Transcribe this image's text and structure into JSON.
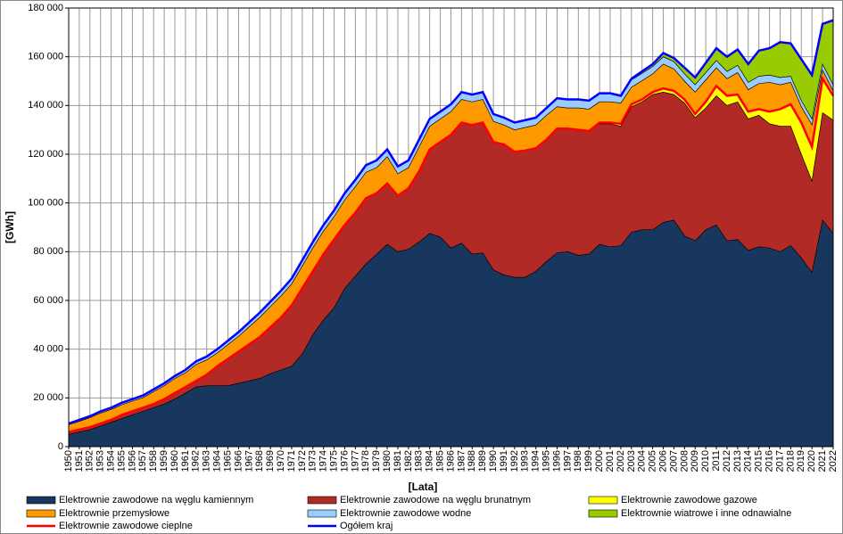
{
  "chart_data": {
    "type": "area",
    "ylabel": "[GWh]",
    "xlabel": "[Lata]",
    "categories": [
      "1950",
      "1951",
      "1952",
      "1953",
      "1954",
      "1955",
      "1956",
      "1957",
      "1958",
      "1959",
      "1960",
      "1961",
      "1962",
      "1963",
      "1964",
      "1965",
      "1966",
      "1967",
      "1968",
      "1969",
      "1970",
      "1971",
      "1972",
      "1973",
      "1974",
      "1975",
      "1976",
      "1977",
      "1978",
      "1979",
      "1980",
      "1981",
      "1982",
      "1983",
      "1984",
      "1985",
      "1986",
      "1987",
      "1988",
      "1989",
      "1990",
      "1991",
      "1992",
      "1993",
      "1994",
      "1995",
      "1996",
      "1997",
      "1998",
      "1999",
      "2000",
      "2001",
      "2002",
      "2003",
      "2004",
      "2005",
      "2006",
      "2007",
      "2008",
      "2009",
      "2010",
      "2011",
      "2012",
      "2013",
      "2014",
      "2015",
      "2016",
      "2017",
      "2018",
      "2019",
      "2020",
      "2021",
      "2022"
    ],
    "ylim": [
      0,
      180000
    ],
    "yticks": [
      0,
      {
        "value": 20000,
        "label": "20 000"
      },
      {
        "value": 40000,
        "label": "40 000"
      },
      {
        "value": 60000,
        "label": "60 000"
      },
      {
        "value": 80000,
        "label": "80 000"
      },
      {
        "value": 100000,
        "label": "100 000"
      },
      {
        "value": 120000,
        "label": "120 000"
      },
      {
        "value": 140000,
        "label": "140 000"
      },
      {
        "value": 160000,
        "label": "160 000"
      },
      {
        "value": 180000,
        "label": "180 000"
      }
    ],
    "grid": true,
    "stacked": true,
    "legend": "bottom",
    "series": [
      {
        "name": "Elektrownie  zawodowe na węglu kamiennym",
        "type": "area",
        "color": "#17375e",
        "values": [
          5000,
          6000,
          7000,
          8500,
          10000,
          11500,
          13000,
          14500,
          16000,
          17500,
          19500,
          22000,
          24500,
          25000,
          25000,
          25000,
          26000,
          27000,
          28000,
          30000,
          31500,
          33000,
          38000,
          46000,
          52000,
          57000,
          65000,
          70000,
          75000,
          79000,
          83000,
          80000,
          81000,
          84000,
          87500,
          86000,
          81500,
          83500,
          79000,
          79500,
          72500,
          70500,
          69500,
          69500,
          72000,
          76000,
          79500,
          80000,
          78500,
          79000,
          83000,
          82000,
          82500,
          88000,
          89000,
          89000,
          92000,
          93000,
          86500,
          84500,
          89000,
          91000,
          84500,
          85000,
          80500,
          82000,
          81500,
          80000,
          82500,
          77500,
          71500,
          93000,
          87500
        ]
      },
      {
        "name": "Elektrownie  zawodowe na węglu brunatnym",
        "type": "area",
        "color": "#b22a25",
        "values": [
          1000,
          1000,
          1000,
          1000,
          1000,
          1500,
          1500,
          1500,
          1500,
          2000,
          2500,
          2500,
          2500,
          4500,
          8000,
          11000,
          13000,
          15000,
          17000,
          19000,
          21500,
          25000,
          27000,
          26000,
          27000,
          28000,
          26000,
          26000,
          27000,
          25000,
          25000,
          23000,
          25000,
          29000,
          34500,
          39000,
          46500,
          49500,
          53000,
          53500,
          52500,
          53500,
          51500,
          52000,
          50500,
          50000,
          51000,
          50500,
          51500,
          50500,
          49500,
          50500,
          49000,
          51500,
          52500,
          55500,
          53500,
          51500,
          54500,
          50500,
          50000,
          53000,
          55500,
          56500,
          54000,
          54000,
          51000,
          51500,
          49000,
          42500,
          37500,
          44000,
          46500
        ]
      },
      {
        "name": "Elektrownie  zawodowe gazowe",
        "type": "area",
        "color": "#ffff00",
        "values": [
          0,
          0,
          0,
          0,
          0,
          0,
          0,
          0,
          0,
          0,
          0,
          0,
          0,
          0,
          0,
          0,
          0,
          0,
          0,
          0,
          0,
          0,
          0,
          0,
          0,
          0,
          0,
          0,
          0,
          0,
          0,
          0,
          0,
          0,
          0,
          0,
          0,
          0,
          0,
          0,
          0,
          0,
          0,
          0,
          0,
          0,
          0,
          0,
          0,
          0,
          500,
          500,
          1000,
          1000,
          1000,
          1000,
          1500,
          1500,
          1500,
          1500,
          2500,
          4000,
          4000,
          3000,
          3000,
          2500,
          5000,
          7000,
          9000,
          13000,
          14000,
          14000,
          10000
        ]
      },
      {
        "name": "Elektrownie  przemysłowe",
        "type": "area",
        "color": "#ff9900",
        "values": [
          3000,
          3400,
          3900,
          4300,
          4300,
          4200,
          4200,
          4100,
          5100,
          5500,
          6000,
          5800,
          6700,
          6100,
          5500,
          5900,
          6300,
          7200,
          8100,
          8500,
          8900,
          8800,
          9200,
          9600,
          9500,
          9400,
          10300,
          10700,
          10600,
          10500,
          11000,
          9000,
          8500,
          10000,
          9500,
          9500,
          9500,
          9500,
          9500,
          9500,
          8500,
          8000,
          9000,
          9500,
          9500,
          10000,
          9000,
          8500,
          9000,
          9000,
          8500,
          8500,
          8500,
          7000,
          7700,
          7500,
          10000,
          9000,
          7500,
          9000,
          9000,
          7500,
          7000,
          9000,
          9000,
          10500,
          12000,
          10000,
          9000,
          6500,
          9000,
          3500,
          2000
        ]
      },
      {
        "name": "Elektrownie  zawodowe wodne",
        "type": "area",
        "color": "#99ccff",
        "values": [
          500,
          600,
          600,
          700,
          700,
          800,
          800,
          900,
          900,
          1000,
          1000,
          1200,
          1300,
          1400,
          1500,
          1600,
          1700,
          1800,
          1900,
          2000,
          2100,
          2200,
          2300,
          2400,
          2500,
          2600,
          2700,
          2800,
          2900,
          3000,
          3000,
          3000,
          3000,
          3000,
          3000,
          3000,
          3000,
          3000,
          3000,
          3000,
          3000,
          3000,
          3000,
          3000,
          3000,
          3000,
          3500,
          3500,
          3500,
          3500,
          3500,
          3500,
          3000,
          3000,
          3000,
          3000,
          3000,
          3000,
          3000,
          3000,
          3000,
          3000,
          3000,
          3000,
          3000,
          3000,
          3000,
          3000,
          2500,
          2500,
          2500,
          2500,
          2500
        ]
      },
      {
        "name": "Elektrownie  wiatrowe i inne odnawialne",
        "type": "area",
        "color": "#99cc00",
        "values": [
          0,
          0,
          0,
          0,
          0,
          0,
          0,
          0,
          0,
          0,
          0,
          0,
          0,
          0,
          0,
          0,
          0,
          0,
          0,
          0,
          0,
          0,
          0,
          0,
          0,
          0,
          0,
          0,
          0,
          0,
          0,
          0,
          0,
          0,
          0,
          0,
          0,
          0,
          0,
          0,
          0,
          0,
          0,
          0,
          0,
          0,
          0,
          0,
          0,
          0,
          0,
          0,
          0,
          500,
          800,
          1000,
          1500,
          1500,
          2500,
          3000,
          4000,
          5000,
          6000,
          6500,
          7500,
          10500,
          11000,
          14500,
          13500,
          17000,
          18000,
          16500,
          26500
        ]
      },
      {
        "name": "Elektrownie  zawodowe cieplne",
        "type": "line",
        "color": "#ff0000",
        "values": [
          6000,
          7000,
          8000,
          9500,
          11000,
          13000,
          14500,
          16000,
          17500,
          19500,
          22000,
          24500,
          27000,
          29500,
          33000,
          36000,
          39000,
          42000,
          45000,
          49000,
          53000,
          58000,
          65000,
          72000,
          79000,
          85000,
          91000,
          96000,
          102000,
          104000,
          108000,
          103000,
          106000,
          113000,
          122000,
          125000,
          128000,
          133000,
          132000,
          133000,
          125000,
          124000,
          121000,
          121500,
          122500,
          126000,
          130500,
          130500,
          130000,
          129500,
          133000,
          133000,
          132500,
          140500,
          142500,
          145500,
          147000,
          146000,
          142500,
          136500,
          141500,
          148000,
          144000,
          144500,
          137500,
          138500,
          137500,
          138500,
          140500,
          133000,
          123000,
          151000,
          144000
        ]
      },
      {
        "name": "Ogółem  kraj",
        "type": "line",
        "color": "#0000ff",
        "values": [
          9500,
          11000,
          12500,
          14500,
          16000,
          18000,
          19500,
          21000,
          23500,
          26000,
          29000,
          31500,
          35000,
          37000,
          40000,
          43500,
          47000,
          51000,
          55000,
          59500,
          64000,
          69000,
          76500,
          84000,
          91000,
          97000,
          104000,
          109500,
          115500,
          117500,
          122000,
          115000,
          117500,
          126000,
          134500,
          137500,
          140500,
          145500,
          144500,
          145500,
          136500,
          135000,
          133000,
          134000,
          135000,
          139000,
          143000,
          142500,
          142500,
          142000,
          145000,
          145000,
          144000,
          151000,
          154000,
          157000,
          161500,
          159500,
          155500,
          151500,
          157500,
          163500,
          160000,
          163000,
          157000,
          162500,
          163500,
          166000,
          165500,
          159000,
          152500,
          173500,
          175000
        ]
      }
    ]
  }
}
